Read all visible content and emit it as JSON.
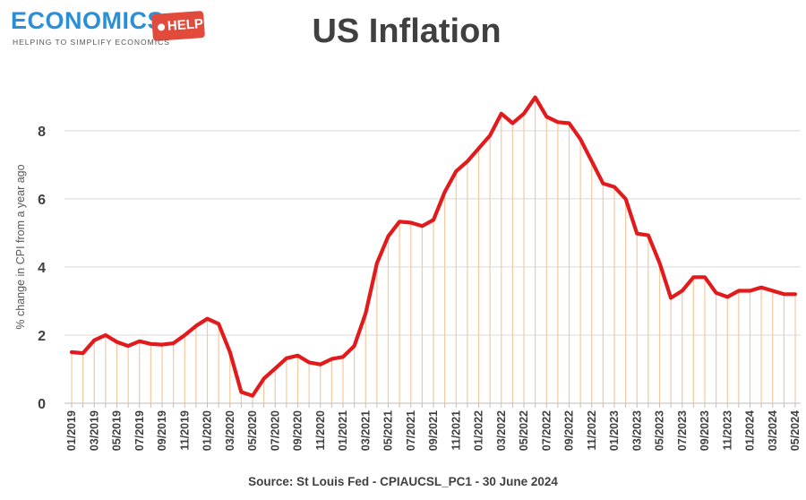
{
  "logo": {
    "word": "ECONOMICS",
    "tag": "HELP",
    "subtitle": "HELPING TO SIMPLIFY ECONOMICS"
  },
  "colors": {
    "line": "#e31a1c",
    "drop_lines": "#f5c9a0",
    "grid": "#d9d9d9",
    "axis_text": "#404040",
    "logo_blue": "#2a8fd6",
    "logo_red": "#e24b3b"
  },
  "chart_data": {
    "type": "line",
    "title": "US Inflation",
    "xlabel": "",
    "ylabel": "% change in CPI from a year ago",
    "ylim": [
      0,
      9.6
    ],
    "yticks": [
      0,
      2,
      4,
      6,
      8
    ],
    "grid": "horizontal",
    "legend": "none",
    "drop_lines": true,
    "x": [
      "01/2019",
      "02/2019",
      "03/2019",
      "04/2019",
      "05/2019",
      "06/2019",
      "07/2019",
      "08/2019",
      "09/2019",
      "10/2019",
      "11/2019",
      "12/2019",
      "01/2020",
      "02/2020",
      "03/2020",
      "04/2020",
      "05/2020",
      "06/2020",
      "07/2020",
      "08/2020",
      "09/2020",
      "10/2020",
      "11/2020",
      "12/2020",
      "01/2021",
      "02/2021",
      "03/2021",
      "04/2021",
      "05/2021",
      "06/2021",
      "07/2021",
      "08/2021",
      "09/2021",
      "10/2021",
      "11/2021",
      "12/2021",
      "01/2022",
      "02/2022",
      "03/2022",
      "04/2022",
      "05/2022",
      "06/2022",
      "07/2022",
      "08/2022",
      "09/2022",
      "10/2022",
      "11/2022",
      "12/2022",
      "01/2023",
      "02/2023",
      "03/2023",
      "04/2023",
      "05/2023",
      "06/2023",
      "07/2023",
      "08/2023",
      "09/2023",
      "10/2023",
      "11/2023",
      "12/2023",
      "01/2024",
      "02/2024",
      "03/2024",
      "04/2024",
      "05/2024"
    ],
    "x_tick_labels": [
      "01/2019",
      "03/2019",
      "05/2019",
      "07/2019",
      "09/2019",
      "11/2019",
      "01/2020",
      "03/2020",
      "05/2020",
      "07/2020",
      "09/2020",
      "11/2020",
      "01/2021",
      "03/2021",
      "05/2021",
      "07/2021",
      "09/2021",
      "11/2021",
      "01/2022",
      "03/2022",
      "05/2022",
      "07/2022",
      "09/2022",
      "11/2022",
      "01/2023",
      "03/2023",
      "05/2023",
      "07/2023",
      "09/2023",
      "11/2023",
      "01/2024",
      "03/2024",
      "05/2024"
    ],
    "values": [
      1.5,
      1.47,
      1.85,
      2.0,
      1.8,
      1.68,
      1.82,
      1.74,
      1.72,
      1.76,
      2.0,
      2.27,
      2.48,
      2.33,
      1.5,
      0.33,
      0.22,
      0.72,
      1.02,
      1.32,
      1.4,
      1.2,
      1.14,
      1.3,
      1.36,
      1.68,
      2.64,
      4.11,
      4.9,
      5.33,
      5.3,
      5.2,
      5.38,
      6.2,
      6.81,
      7.1,
      7.48,
      7.86,
      8.5,
      8.22,
      8.5,
      8.98,
      8.41,
      8.25,
      8.22,
      7.75,
      7.1,
      6.45,
      6.35,
      6.0,
      4.98,
      4.93,
      4.12,
      3.09,
      3.3,
      3.7,
      3.7,
      3.24,
      3.12,
      3.3,
      3.3,
      3.4,
      3.3,
      3.2,
      3.2
    ]
  },
  "source": "Source: St Louis Fed - CPIAUCSL_PC1 - 30 June 2024"
}
